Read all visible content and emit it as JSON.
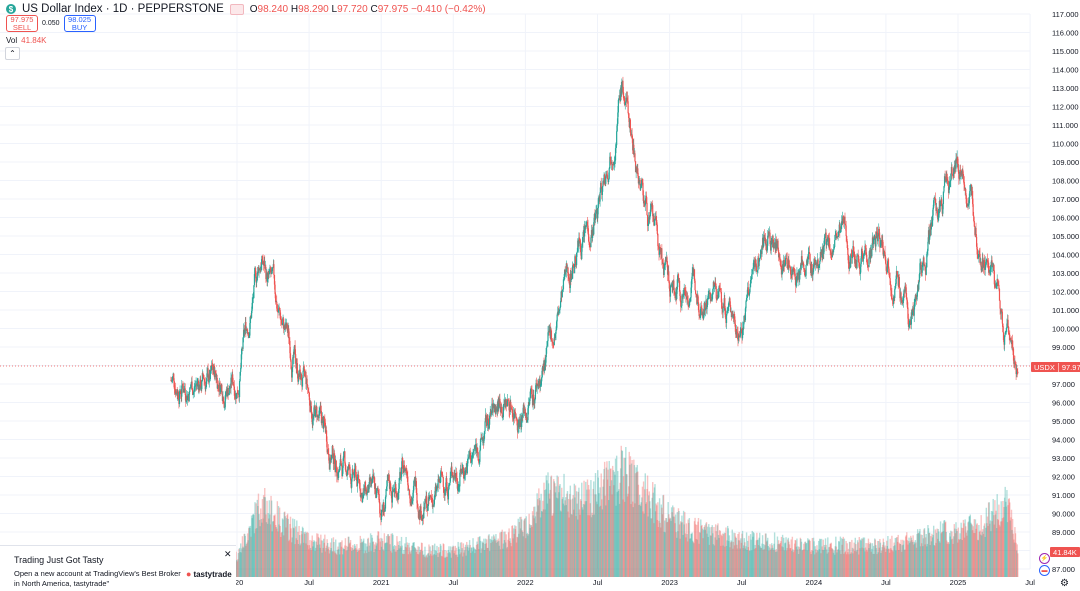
{
  "symbol": {
    "title": "US Dollar Index · 1D · PEPPERSTONE",
    "ohlc": [
      {
        "label": "O",
        "value": "98.240"
      },
      {
        "label": "H",
        "value": "98.290"
      },
      {
        "label": "L",
        "value": "97.720"
      },
      {
        "label": "C",
        "value": "97.975"
      }
    ],
    "change": "−0.410 (−0.42%)"
  },
  "trade": {
    "sell_price": "97.975",
    "sell_label": "SELL",
    "spread": "0.050",
    "buy_price": "98.025",
    "buy_label": "BUY"
  },
  "volume_legend": {
    "label": "Vol",
    "value": "41.84K"
  },
  "current_price": {
    "symbol": "USDX",
    "value": "97.975"
  },
  "volume_label": "41.84K",
  "colors": {
    "up": "#26a69a",
    "down": "#ef5350",
    "accent": "#2962ff"
  },
  "ad": {
    "title": "Trading Just Got Tasty",
    "body": "Open a new account at TradingView's Best Broker in North America, tastytrade\"",
    "brand": "tastytrade",
    "close": "✕"
  },
  "chart_data": {
    "type": "line",
    "x": [
      "2020-01",
      "2020-03",
      "2020-05",
      "2020-07",
      "2020-09",
      "2020-11",
      "2021-01",
      "2021-03",
      "2021-05",
      "2021-07",
      "2021-09",
      "2021-11",
      "2022-01",
      "2022-03",
      "2022-05",
      "2022-07",
      "2022-09",
      "2022-11",
      "2023-01",
      "2023-03",
      "2023-05",
      "2023-07",
      "2023-09",
      "2023-11",
      "2024-01",
      "2024-03",
      "2024-05",
      "2024-07",
      "2024-09",
      "2024-11",
      "2025-01",
      "2025-03",
      "2025-05",
      "2025-06"
    ],
    "values": [
      97.2,
      103.8,
      99.8,
      96.0,
      93.2,
      91.6,
      90.1,
      92.4,
      90.2,
      92.4,
      93.4,
      96.3,
      95.7,
      98.7,
      104.0,
      106.3,
      113.3,
      106.8,
      102.0,
      102.5,
      101.5,
      100.3,
      105.3,
      103.4,
      103.3,
      104.5,
      104.6,
      104.2,
      100.8,
      105.7,
      109.4,
      104.1,
      99.8,
      97.975
    ],
    "series_name": "USDX",
    "volume_relative": [
      0.2,
      0.7,
      0.5,
      0.35,
      0.3,
      0.3,
      0.35,
      0.3,
      0.25,
      0.25,
      0.3,
      0.35,
      0.5,
      0.8,
      0.75,
      0.8,
      1.0,
      0.8,
      0.55,
      0.45,
      0.4,
      0.35,
      0.35,
      0.3,
      0.3,
      0.3,
      0.3,
      0.3,
      0.35,
      0.4,
      0.45,
      0.5,
      0.7,
      0.3
    ],
    "y_ticks": [
      "117.000",
      "116.000",
      "115.000",
      "114.000",
      "113.000",
      "112.000",
      "111.000",
      "110.000",
      "109.000",
      "108.000",
      "107.000",
      "106.000",
      "105.000",
      "104.000",
      "103.000",
      "102.000",
      "101.000",
      "100.000",
      "99.000",
      "98.000",
      "97.000",
      "96.000",
      "95.000",
      "94.000",
      "93.000",
      "92.000",
      "91.000",
      "90.000",
      "89.000",
      "88.000",
      "87.000"
    ],
    "y_range": [
      87,
      117
    ],
    "x_ticks": [
      {
        "label": "020",
        "x": "2020-01"
      },
      {
        "label": "Jul",
        "x": "2020-07"
      },
      {
        "label": "2021",
        "x": "2021-01"
      },
      {
        "label": "Jul",
        "x": "2021-07"
      },
      {
        "label": "2022",
        "x": "2022-01"
      },
      {
        "label": "Jul",
        "x": "2022-07"
      },
      {
        "label": "2023",
        "x": "2023-01"
      },
      {
        "label": "Jul",
        "x": "2023-07"
      },
      {
        "label": "2024",
        "x": "2024-01"
      },
      {
        "label": "Jul",
        "x": "2024-07"
      },
      {
        "label": "2025",
        "x": "2025-01"
      },
      {
        "label": "Jul",
        "x": "2025-07"
      }
    ],
    "last_price": 97.975,
    "grid": true,
    "axis_position": "right"
  }
}
